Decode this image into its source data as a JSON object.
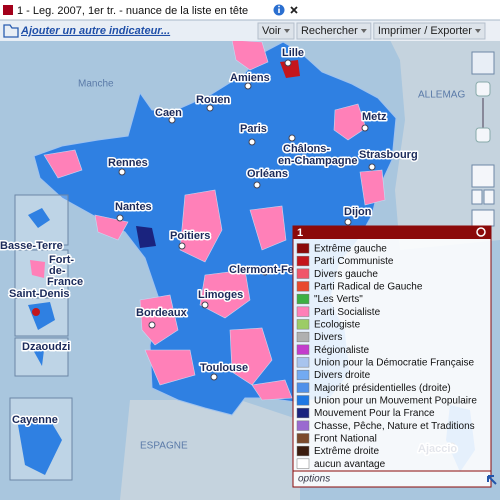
{
  "header": {
    "title": "1 - Leg. 2007, 1er tr. - nuance de la liste en tête"
  },
  "toolbar": {
    "add_link": "Ajouter un autre indicateur...",
    "menus": [
      "Voir",
      "Rechercher",
      "Imprimer / Exporter"
    ]
  },
  "map": {
    "sea_labels": [
      "Manche",
      "ALLEMAG",
      "ESPAGNE"
    ],
    "city_labels": [
      {
        "lines": [
          "Lille"
        ]
      },
      {
        "lines": [
          "Amiens"
        ]
      },
      {
        "lines": [
          "Rouen"
        ]
      },
      {
        "lines": [
          "Caen"
        ]
      },
      {
        "lines": [
          "Paris"
        ]
      },
      {
        "lines": [
          "Metz"
        ]
      },
      {
        "lines": [
          "Châlons-",
          "en-Champagne"
        ]
      },
      {
        "lines": [
          "Strasbourg"
        ]
      },
      {
        "lines": [
          "Rennes"
        ]
      },
      {
        "lines": [
          "Orléans"
        ]
      },
      {
        "lines": [
          "Nantes"
        ]
      },
      {
        "lines": [
          "Dijon"
        ]
      },
      {
        "lines": [
          "Poitiers"
        ]
      },
      {
        "lines": [
          "Clermont-Fe"
        ]
      },
      {
        "lines": [
          "Limoges"
        ]
      },
      {
        "lines": [
          "Bordeaux"
        ]
      },
      {
        "lines": [
          "Toulouse"
        ]
      },
      {
        "lines": [
          "Ajaccio"
        ]
      }
    ],
    "overseas_labels": [
      {
        "lines": [
          "Basse-Terre"
        ]
      },
      {
        "lines": [
          "Fort-",
          "de-",
          "France"
        ]
      },
      {
        "lines": [
          "Saint-Denis"
        ]
      },
      {
        "lines": [
          "Dzaoudzi"
        ]
      },
      {
        "lines": [
          "Cayenne"
        ]
      }
    ]
  },
  "legend": {
    "title": "1",
    "options": "options",
    "items": [
      {
        "name": "Extrême gauche",
        "color": "#8b0a0a"
      },
      {
        "name": "Parti Communiste",
        "color": "#c4161c"
      },
      {
        "name": "Divers gauche",
        "color": "#f0566a"
      },
      {
        "name": "Parti Radical de Gauche",
        "color": "#e8492e"
      },
      {
        "name": "\"Les Verts\"",
        "color": "#3cb043"
      },
      {
        "name": "Parti Socialiste",
        "color": "#ff80b8"
      },
      {
        "name": "Ecologiste",
        "color": "#9ccc65"
      },
      {
        "name": "Divers",
        "color": "#b0b0b0"
      },
      {
        "name": "Régionaliste",
        "color": "#c33ccc"
      },
      {
        "name": "Union pour la Démocratie Française",
        "color": "#a8c4ee"
      },
      {
        "name": "Divers droite",
        "color": "#72aaf2"
      },
      {
        "name": "Majorité présidentielles (droite)",
        "color": "#4f90ea"
      },
      {
        "name": "Union pour un Mouvement Populaire",
        "color": "#1f78e4"
      },
      {
        "name": "Mouvement Pour la France",
        "color": "#1a237e"
      },
      {
        "name": "Chasse, Pêche, Nature et Traditions",
        "color": "#9a6ad0"
      },
      {
        "name": "Front National",
        "color": "#7b4a2c"
      },
      {
        "name": "Extrême droite",
        "color": "#3b1c0e"
      },
      {
        "name": "aucun avantage",
        "color": "#ffffff"
      }
    ]
  }
}
